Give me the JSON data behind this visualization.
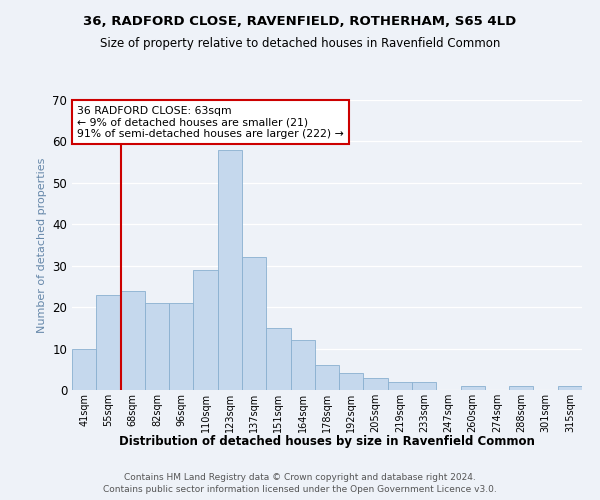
{
  "title1": "36, RADFORD CLOSE, RAVENFIELD, ROTHERHAM, S65 4LD",
  "title2": "Size of property relative to detached houses in Ravenfield Common",
  "xlabel": "Distribution of detached houses by size in Ravenfield Common",
  "ylabel": "Number of detached properties",
  "bins": [
    "41sqm",
    "55sqm",
    "68sqm",
    "82sqm",
    "96sqm",
    "110sqm",
    "123sqm",
    "137sqm",
    "151sqm",
    "164sqm",
    "178sqm",
    "192sqm",
    "205sqm",
    "219sqm",
    "233sqm",
    "247sqm",
    "260sqm",
    "274sqm",
    "288sqm",
    "301sqm",
    "315sqm"
  ],
  "counts": [
    10,
    23,
    24,
    21,
    21,
    29,
    58,
    32,
    15,
    12,
    6,
    4,
    3,
    2,
    2,
    0,
    1,
    0,
    1,
    0,
    1
  ],
  "bar_color": "#c5d8ed",
  "bar_edge_color": "#8ab0d0",
  "vline_pos": 1.5,
  "vline_color": "#cc0000",
  "annotation_text": "36 RADFORD CLOSE: 63sqm\n← 9% of detached houses are smaller (21)\n91% of semi-detached houses are larger (222) →",
  "annotation_box_facecolor": "#ffffff",
  "annotation_box_edgecolor": "#cc0000",
  "ylim": [
    0,
    70
  ],
  "yticks": [
    0,
    10,
    20,
    30,
    40,
    50,
    60,
    70
  ],
  "footer1": "Contains HM Land Registry data © Crown copyright and database right 2024.",
  "footer2": "Contains public sector information licensed under the Open Government Licence v3.0.",
  "bg_color": "#eef2f8",
  "ylabel_color": "#6688aa",
  "grid_color": "#ffffff",
  "spine_color": "#cccccc"
}
